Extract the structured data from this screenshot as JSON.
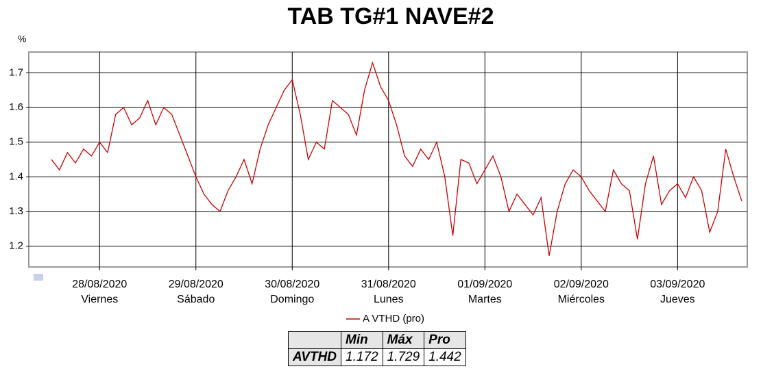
{
  "chart_data": {
    "type": "line",
    "title": "TAB TG#1 NAVE#2",
    "y_label": "%",
    "categories": [
      null,
      null,
      null,
      null,
      null,
      null,
      "28/08/2020",
      null,
      null,
      null,
      null,
      null,
      null,
      null,
      null,
      null,
      null,
      null,
      "29/08/2020",
      null,
      null,
      null,
      null,
      null,
      null,
      null,
      null,
      null,
      null,
      null,
      "30/08/2020",
      null,
      null,
      null,
      null,
      null,
      null,
      null,
      null,
      null,
      null,
      null,
      "31/08/2020",
      null,
      null,
      null,
      null,
      null,
      null,
      null,
      null,
      null,
      null,
      null,
      "01/09/2020",
      null,
      null,
      null,
      null,
      null,
      null,
      null,
      null,
      null,
      null,
      null,
      "02/09/2020",
      null,
      null,
      null,
      null,
      null,
      null,
      null,
      null,
      null,
      null,
      null,
      "03/09/2020",
      null,
      null,
      null,
      null,
      null,
      null,
      null,
      null
    ],
    "category_sublabels": [
      null,
      null,
      null,
      null,
      null,
      null,
      "Viernes",
      null,
      null,
      null,
      null,
      null,
      null,
      null,
      null,
      null,
      null,
      null,
      "Sábado",
      null,
      null,
      null,
      null,
      null,
      null,
      null,
      null,
      null,
      null,
      null,
      "Domingo",
      null,
      null,
      null,
      null,
      null,
      null,
      null,
      null,
      null,
      null,
      null,
      "Lunes",
      null,
      null,
      null,
      null,
      null,
      null,
      null,
      null,
      null,
      null,
      null,
      "Martes",
      null,
      null,
      null,
      null,
      null,
      null,
      null,
      null,
      null,
      null,
      null,
      "Miércoles",
      null,
      null,
      null,
      null,
      null,
      null,
      null,
      null,
      null,
      null,
      null,
      "Jueves",
      null,
      null,
      null,
      null,
      null,
      null,
      null,
      null
    ],
    "series": [
      {
        "name": "A VTHD (pro)",
        "color": "#cc0000",
        "values": [
          1.45,
          1.42,
          1.47,
          1.44,
          1.48,
          1.46,
          1.5,
          1.47,
          1.58,
          1.6,
          1.55,
          1.57,
          1.62,
          1.55,
          1.6,
          1.58,
          1.52,
          1.46,
          1.4,
          1.35,
          1.32,
          1.3,
          1.36,
          1.4,
          1.45,
          1.38,
          1.48,
          1.55,
          1.6,
          1.65,
          1.68,
          1.58,
          1.45,
          1.5,
          1.48,
          1.62,
          1.6,
          1.58,
          1.52,
          1.65,
          1.729,
          1.66,
          1.62,
          1.55,
          1.46,
          1.43,
          1.48,
          1.45,
          1.5,
          1.4,
          1.23,
          1.45,
          1.44,
          1.38,
          1.42,
          1.46,
          1.4,
          1.3,
          1.35,
          1.32,
          1.29,
          1.34,
          1.172,
          1.3,
          1.38,
          1.42,
          1.4,
          1.36,
          1.33,
          1.3,
          1.42,
          1.38,
          1.36,
          1.22,
          1.38,
          1.46,
          1.32,
          1.36,
          1.38,
          1.34,
          1.4,
          1.36,
          1.24,
          1.3,
          1.48,
          1.4,
          1.33
        ]
      }
    ],
    "ylim": [
      1.14,
      1.76
    ],
    "yticks": [
      1.2,
      1.3,
      1.4,
      1.5,
      1.6,
      1.7
    ],
    "grid": true,
    "table": {
      "header": [
        "Min",
        "Máx",
        "Pro"
      ],
      "rows": [
        [
          "AVTHD",
          1.172,
          1.729,
          1.442
        ]
      ]
    }
  }
}
